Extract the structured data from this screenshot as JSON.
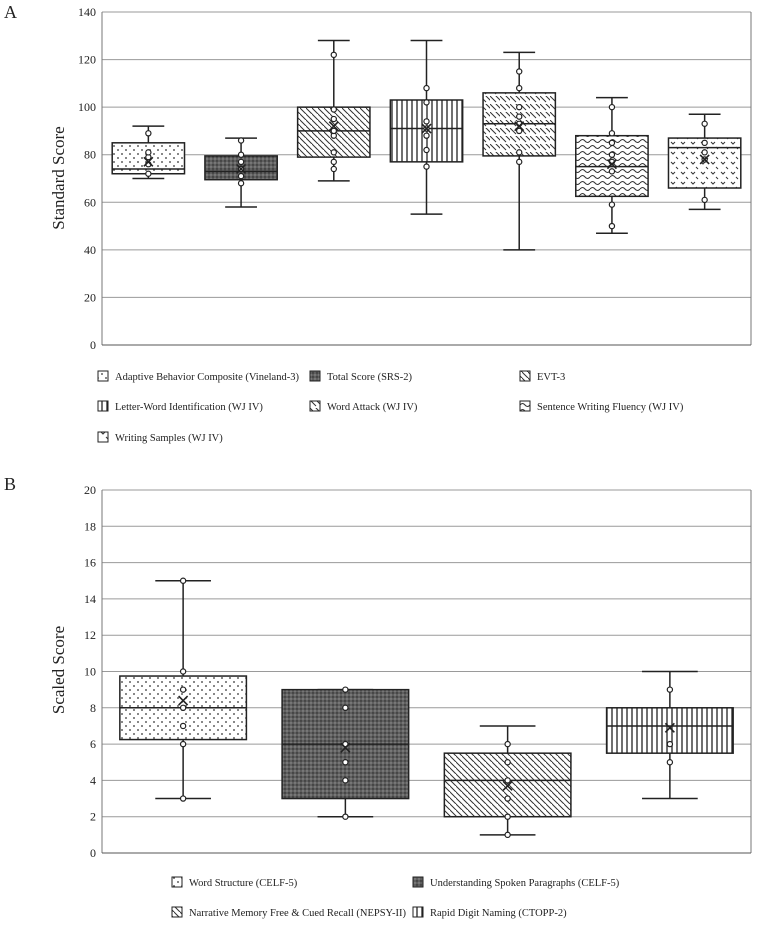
{
  "chart_data": [
    {
      "panel": "A",
      "type": "box",
      "ylabel": "Standard Score",
      "ylim": [
        0,
        140
      ],
      "yticks": [
        0,
        20,
        40,
        60,
        80,
        100,
        120,
        140
      ],
      "grid": true,
      "series": [
        {
          "name": "Adaptive Behavior Composite (Vineland-3)",
          "pattern": "dots",
          "whisker_low": 70,
          "q1": 72,
          "median": 74,
          "q3": 85,
          "whisker_high": 92,
          "mean": 77,
          "points": [
            72,
            76,
            79,
            81,
            89
          ]
        },
        {
          "name": "Total Score (SRS-2)",
          "pattern": "dense",
          "whisker_low": 58,
          "q1": 69.5,
          "median": 73,
          "q3": 79.5,
          "whisker_high": 87,
          "mean": 74,
          "points": [
            68,
            71,
            74,
            77,
            80,
            86
          ]
        },
        {
          "name": "EVT-3",
          "pattern": "diag",
          "whisker_low": 69,
          "q1": 79,
          "median": 90,
          "q3": 100,
          "whisker_high": 128,
          "mean": 92,
          "points": [
            74,
            77,
            81,
            88,
            90,
            95,
            99,
            122
          ]
        },
        {
          "name": "Letter-Word Identification (WJ IV)",
          "pattern": "vert",
          "whisker_low": 55,
          "q1": 77,
          "median": 91,
          "q3": 103,
          "whisker_high": 128,
          "mean": 91,
          "points": [
            75,
            82,
            88,
            91,
            94,
            102,
            108
          ]
        },
        {
          "name": "Word Attack (WJ IV)",
          "pattern": "dash",
          "whisker_low": 40,
          "q1": 79.5,
          "median": 93,
          "q3": 106,
          "whisker_high": 123,
          "mean": 92,
          "points": [
            77,
            81,
            90,
            93,
            96,
            100,
            108,
            115
          ]
        },
        {
          "name": "Sentence Writing Fluency (WJ IV)",
          "pattern": "wave",
          "whisker_low": 47,
          "q1": 62.5,
          "median": 75,
          "q3": 88,
          "whisker_high": 104,
          "mean": 76,
          "points": [
            50,
            59,
            73,
            77,
            80,
            85,
            89,
            100
          ]
        },
        {
          "name": "Writing Samples (WJ IV)",
          "pattern": "hooks",
          "whisker_low": 57,
          "q1": 66,
          "median": 83,
          "q3": 87,
          "whisker_high": 97,
          "mean": 78,
          "points": [
            61,
            78,
            81,
            85,
            93
          ]
        }
      ]
    },
    {
      "panel": "B",
      "type": "box",
      "ylabel": "Scaled Score",
      "ylim": [
        0,
        20
      ],
      "yticks": [
        0,
        2,
        4,
        6,
        8,
        10,
        12,
        14,
        16,
        18,
        20
      ],
      "grid": true,
      "series": [
        {
          "name": "Word Structure (CELF-5)",
          "pattern": "dots",
          "whisker_low": 3,
          "q1": 6.25,
          "median": 8,
          "q3": 9.75,
          "whisker_high": 15,
          "mean": 8.4,
          "points": [
            3,
            6,
            7,
            8,
            9,
            10,
            15
          ]
        },
        {
          "name": "Understanding Spoken Paragraphs (CELF-5)",
          "pattern": "dense",
          "whisker_low": 2,
          "q1": 3,
          "median": 6,
          "q3": 9,
          "whisker_high": 9,
          "mean": 5.8,
          "points": [
            2,
            4,
            5,
            6,
            8,
            9
          ]
        },
        {
          "name": "Narrative Memory Free & Cued Recall (NEPSY-II)",
          "pattern": "diag",
          "whisker_low": 1,
          "q1": 2,
          "median": 4,
          "q3": 5.5,
          "whisker_high": 7,
          "mean": 3.7,
          "points": [
            1,
            2,
            3,
            4,
            5,
            6
          ]
        },
        {
          "name": "Rapid Digit Naming (CTOPP-2)",
          "pattern": "vert",
          "whisker_low": 3,
          "q1": 5.5,
          "median": 7,
          "q3": 8,
          "whisker_high": 10,
          "mean": 6.9,
          "points": [
            5,
            6,
            9
          ]
        }
      ]
    }
  ],
  "colors": {
    "ink": "#222222",
    "grid": "#9a9a9a",
    "fill_light": "#ffffff",
    "fill_dark": "#6b6b6b"
  }
}
